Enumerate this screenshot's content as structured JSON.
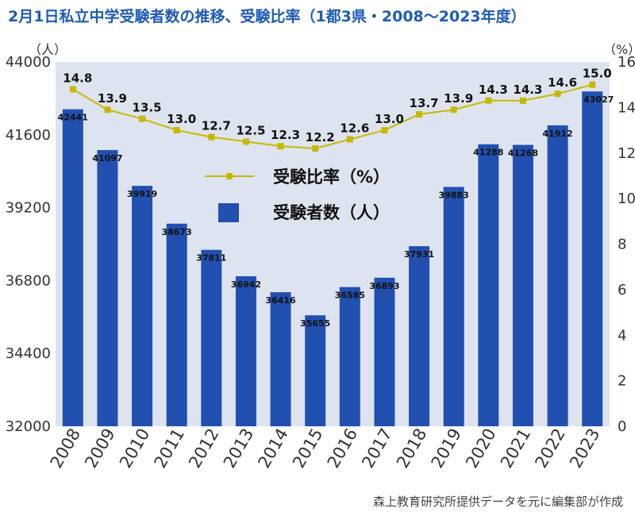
{
  "chart_data": {
    "type": "bar",
    "title": "2月1日私立中学受験者数の推移、受験比率（1都3県・2008～2023年度）",
    "source": "森上教育研究所提供データを元に編集部が作成",
    "categories": [
      "2008",
      "2009",
      "2010",
      "2011",
      "2012",
      "2013",
      "2014",
      "2015",
      "2016",
      "2017",
      "2018",
      "2019",
      "2020",
      "2021",
      "2022",
      "2023"
    ],
    "series": [
      {
        "name": "受験者数（人）",
        "type": "bar",
        "axis": "left",
        "values": [
          42441,
          41097,
          39919,
          38673,
          37811,
          36942,
          36416,
          35655,
          36585,
          36893,
          37931,
          39883,
          41288,
          41268,
          41912,
          43027
        ],
        "color": "#2150b0"
      },
      {
        "name": "受験比率（%）",
        "type": "line",
        "axis": "right",
        "values": [
          14.8,
          13.9,
          13.5,
          13.0,
          12.7,
          12.5,
          12.3,
          12.2,
          12.6,
          13.0,
          13.7,
          13.9,
          14.3,
          14.3,
          14.6,
          15.0
        ],
        "labels": [
          "14.8",
          "13.9",
          "13.5",
          "13.0",
          "12.7",
          "12.5",
          "12.3",
          "12.2",
          "12.6",
          "13.0",
          "13.7",
          "13.9",
          "14.3",
          "14.3",
          "14.6",
          "15.0"
        ],
        "color": "#c8b800"
      }
    ],
    "y_left": {
      "unit": "（人）",
      "ylim": [
        32000,
        44000
      ],
      "ticks": [
        "32000",
        "34400",
        "36800",
        "39200",
        "41600",
        "44000"
      ]
    },
    "y_right": {
      "unit": "（%）",
      "ylim": [
        0,
        16
      ],
      "ticks": [
        "0",
        "2",
        "4",
        "6",
        "8",
        "10",
        "12",
        "14",
        "16"
      ]
    },
    "legend": {
      "position": "center",
      "entries": [
        "受験比率（%）",
        "受験者数（人）"
      ]
    },
    "colors": {
      "plot_bg": "#dde4f0",
      "bar": "#2150b0",
      "line": "#c8b800",
      "title": "#1e5bb5"
    }
  }
}
